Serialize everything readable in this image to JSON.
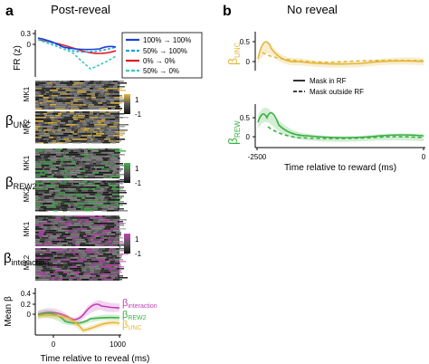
{
  "panel_a": {
    "letter": "a",
    "title": "Post-reveal",
    "fr_ylabel": "FR (z)",
    "fr_ticks": [
      "0.3",
      "0"
    ],
    "legend": [
      {
        "label": "100% → 100%",
        "color": "#1f3fd6",
        "dash": false
      },
      {
        "label": "50% → 100%",
        "color": "#1ca3e0",
        "dash": true
      },
      {
        "label": "0% → 0%",
        "color": "#e01b24",
        "dash": false
      },
      {
        "label": "50% → 0%",
        "color": "#36c8c8",
        "dash": true
      }
    ],
    "beta_unc": {
      "symbol": "β",
      "sub": "UNC",
      "rows": [
        "MK1",
        "MK2"
      ],
      "colorbar": [
        "1",
        "-1"
      ],
      "color": "#e3b63a"
    },
    "beta_rew2": {
      "symbol": "β",
      "sub": "REW2",
      "rows": [
        "MK1",
        "MK2"
      ],
      "colorbar": [
        "1",
        "-1"
      ],
      "color": "#3cb043"
    },
    "beta_int": {
      "symbol": "β",
      "sub": "interaction",
      "rows": [
        "MK1",
        "MK2"
      ],
      "colorbar": [
        "1",
        "-1"
      ],
      "color": "#c23fb6"
    },
    "mean_beta": {
      "ylabel": "Mean β",
      "yticks": [
        "0.4",
        "0.2",
        "0"
      ],
      "xticks": [
        "0",
        "1000"
      ],
      "xlabel": "Time relative to reveal (ms)",
      "labels": [
        {
          "symbol": "β",
          "sub": "interaction",
          "color": "#c23fb6"
        },
        {
          "symbol": "β",
          "sub": "REW2",
          "color": "#3cb043"
        },
        {
          "symbol": "β",
          "sub": "UNC",
          "color": "#e3b63a"
        }
      ]
    }
  },
  "panel_b": {
    "letter": "b",
    "title": "No reveal",
    "unc": {
      "symbol": "β",
      "sub": "UNC",
      "color": "#e3b63a",
      "yticks": [
        "0.5",
        "0"
      ]
    },
    "rew": {
      "symbol": "β",
      "sub": "REW",
      "color": "#3cb043",
      "yticks": [
        "0.5",
        "0"
      ]
    },
    "legend": [
      {
        "label": "Mask in RF",
        "dash": false
      },
      {
        "label": "Mask outside RF",
        "dash": true
      }
    ],
    "xticks": [
      "-2500",
      "0"
    ],
    "xlabel": "Time relative to reward (ms)"
  }
}
